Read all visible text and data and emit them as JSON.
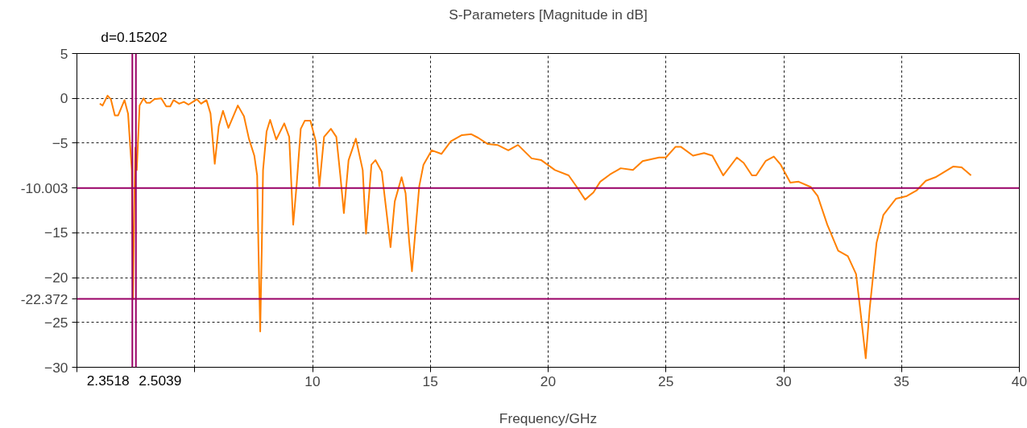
{
  "chart_data": {
    "type": "line",
    "title": "S-Parameters [Magnitude in dB]",
    "xlabel": "Frequency/GHz",
    "series": [
      {
        "color": "#ff8000",
        "x": [
          0.97,
          1.09,
          1.3,
          1.44,
          1.61,
          1.75,
          2.02,
          2.17,
          2.26,
          2.33,
          2.38,
          2.43,
          2.48,
          2.54,
          2.66,
          2.83,
          2.95,
          3.1,
          3.29,
          3.58,
          3.79,
          3.96,
          4.1,
          4.34,
          4.54,
          4.74,
          4.92,
          5.09,
          5.27,
          5.5,
          5.67,
          5.85,
          6.02,
          6.2,
          6.43,
          6.83,
          7.09,
          7.3,
          7.53,
          7.65,
          7.7,
          7.78,
          7.85,
          7.9,
          8.05,
          8.2,
          8.46,
          8.8,
          9.01,
          9.18,
          9.33,
          9.5,
          9.67,
          9.91,
          10.14,
          10.29,
          10.49,
          10.78,
          11.01,
          11.18,
          11.33,
          11.53,
          11.84,
          12.13,
          12.27,
          12.5,
          12.67,
          12.94,
          13.14,
          13.31,
          13.49,
          13.78,
          13.95,
          14.1,
          14.22,
          14.36,
          14.53,
          14.71,
          15.06,
          15.47,
          15.87,
          16.34,
          16.74,
          17.03,
          17.44,
          17.85,
          18.31,
          18.72,
          19.3,
          19.71,
          20.29,
          20.87,
          21.22,
          21.57,
          21.92,
          22.21,
          22.62,
          23.08,
          23.6,
          24.01,
          24.71,
          25.0,
          25.41,
          25.63,
          26.15,
          26.62,
          26.97,
          27.43,
          28.01,
          28.3,
          28.65,
          28.83,
          29.23,
          29.58,
          29.87,
          30.28,
          30.63,
          31.15,
          31.44,
          31.85,
          32.31,
          32.72,
          33.07,
          33.24,
          33.48,
          33.65,
          33.94,
          34.23,
          34.76,
          35.22,
          35.63,
          36.03,
          36.44,
          37.2,
          37.55,
          37.95
        ],
        "values": [
          -0.6,
          -0.8,
          0.3,
          -0.1,
          -1.9,
          -1.9,
          -0.2,
          -1.7,
          -5.3,
          -8,
          -22.4,
          -12.5,
          -5.5,
          -8,
          -0.8,
          0,
          -0.5,
          -0.5,
          -0.1,
          0,
          -0.9,
          -0.9,
          -0.2,
          -0.6,
          -0.4,
          -0.7,
          -0.4,
          -0.1,
          -0.6,
          -0.2,
          -1.7,
          -7.3,
          -3.1,
          -1.4,
          -3.3,
          -0.8,
          -2,
          -4.5,
          -6.4,
          -8.6,
          -16.1,
          -26,
          -16.1,
          -8,
          -3.7,
          -2.4,
          -4.6,
          -2.8,
          -4.3,
          -14.1,
          -9.5,
          -3.4,
          -2.5,
          -2.5,
          -4.8,
          -9.8,
          -4.3,
          -3.4,
          -4.3,
          -8.6,
          -12.8,
          -6.9,
          -4.5,
          -8,
          -15.1,
          -7.4,
          -6.9,
          -8.2,
          -12.7,
          -16.6,
          -11.5,
          -8.8,
          -10.6,
          -15.9,
          -19.3,
          -15,
          -9.8,
          -7.4,
          -5.8,
          -6.2,
          -4.8,
          -4.1,
          -4,
          -4.4,
          -5.1,
          -5.2,
          -5.8,
          -5.2,
          -6.7,
          -6.9,
          -8,
          -8.6,
          -9.9,
          -11.3,
          -10.5,
          -9.3,
          -8.5,
          -7.8,
          -8,
          -7,
          -6.6,
          -6.6,
          -5.4,
          -5.4,
          -6.4,
          -6.1,
          -6.4,
          -8.6,
          -6.6,
          -7.2,
          -8.6,
          -8.6,
          -7,
          -6.5,
          -7.4,
          -9.4,
          -9.3,
          -9.9,
          -10.9,
          -14.1,
          -17,
          -17.6,
          -19.6,
          -23.4,
          -29,
          -23.4,
          -16.1,
          -13,
          -11.2,
          -10.9,
          -10.3,
          -9.2,
          -8.8,
          -7.6,
          -7.7,
          -8.6
        ]
      }
    ],
    "xlim": [
      0,
      40
    ],
    "ylim": [
      -30,
      5
    ],
    "xticks": [
      {
        "value": 0,
        "label": null
      },
      {
        "value": 5,
        "label": null
      },
      10,
      15,
      20,
      25,
      30,
      35,
      40
    ],
    "yticks": [
      -30,
      -25,
      -20,
      -15,
      {
        "value": -10,
        "label": null
      },
      -5,
      0,
      5
    ],
    "grid": true,
    "marker": "none",
    "line_style": "solid",
    "legend": false,
    "ref_lines": [
      {
        "axis": "x",
        "value": 2.3518,
        "label": "2.3518",
        "color": "#990066"
      },
      {
        "axis": "x",
        "value": 2.5039,
        "label": "2.5039",
        "color": "#990066"
      },
      {
        "axis": "y",
        "value": -10.003,
        "label": "-10.003",
        "color": "#990066"
      },
      {
        "axis": "y",
        "value": -22.372,
        "label": "-22.372",
        "color": "#990066"
      }
    ],
    "annotations": [
      "d=0.15202"
    ]
  }
}
